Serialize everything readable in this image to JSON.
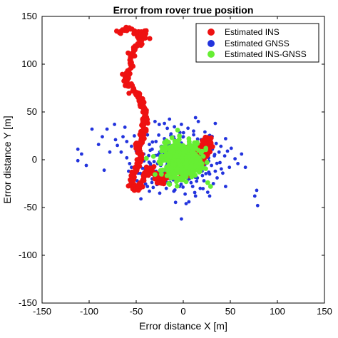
{
  "chart_data": {
    "type": "scatter",
    "title": "Error from rover true position",
    "xlabel": "Error distance X [m]",
    "ylabel": "Error distance Y [m]",
    "xlim": [
      -150,
      150
    ],
    "ylim": [
      -150,
      150
    ],
    "xticks": [
      -150,
      -100,
      -50,
      0,
      50,
      100,
      150
    ],
    "yticks": [
      -150,
      -100,
      -50,
      0,
      50,
      100,
      150
    ],
    "grid": false,
    "legend_position": "top-right",
    "series": [
      {
        "name": "Estimated INS",
        "color": "#ee1111",
        "trace": [
          [
            -68,
            134
          ],
          [
            -64,
            136
          ],
          [
            -58,
            137
          ],
          [
            -53,
            135
          ],
          [
            -47,
            132
          ],
          [
            -42,
            134
          ],
          [
            -40,
            130
          ],
          [
            -43,
            126
          ],
          [
            -47,
            121
          ],
          [
            -52,
            117
          ],
          [
            -56,
            112
          ],
          [
            -56,
            106
          ],
          [
            -55,
            100
          ],
          [
            -57,
            94
          ],
          [
            -60,
            89
          ],
          [
            -61,
            84
          ],
          [
            -59,
            79
          ],
          [
            -56,
            75
          ],
          [
            -52,
            72
          ],
          [
            -48,
            69
          ],
          [
            -47,
            65
          ],
          [
            -45,
            61
          ],
          [
            -43,
            57
          ],
          [
            -41,
            53
          ],
          [
            -40,
            49
          ],
          [
            -42,
            45
          ],
          [
            -41,
            41
          ],
          [
            -43,
            37
          ],
          [
            -42,
            33
          ],
          [
            -41,
            30
          ],
          [
            -44,
            27
          ],
          [
            -43,
            24
          ],
          [
            -44,
            20
          ],
          [
            -47,
            17
          ],
          [
            -49,
            13
          ],
          [
            -47,
            9
          ],
          [
            -45,
            5
          ],
          [
            -46,
            1
          ],
          [
            -48,
            -3
          ],
          [
            -49,
            -8
          ],
          [
            -51,
            -12
          ],
          [
            -53,
            -17
          ],
          [
            -55,
            -22
          ],
          [
            -54,
            -26
          ],
          [
            -52,
            -30
          ],
          [
            -49,
            -32
          ],
          [
            -46,
            -30
          ],
          [
            -44,
            -25
          ],
          [
            -42,
            -20
          ],
          [
            -40,
            -15
          ],
          [
            -37,
            -11
          ],
          [
            -34,
            -9
          ],
          [
            -31,
            -13
          ],
          [
            -28,
            -17
          ],
          [
            -26,
            -21
          ],
          [
            -24,
            -24
          ],
          [
            -21,
            -22
          ],
          [
            -18,
            -18
          ],
          [
            -15,
            -15
          ],
          [
            -12,
            -13
          ],
          [
            -9,
            -11
          ],
          [
            -6,
            -9
          ],
          [
            -3,
            -7
          ],
          [
            0,
            -5
          ],
          [
            3,
            -3
          ],
          [
            6,
            0
          ],
          [
            9,
            3
          ],
          [
            12,
            6
          ],
          [
            15,
            9
          ],
          [
            18,
            12
          ],
          [
            20,
            15
          ],
          [
            22,
            18
          ],
          [
            24,
            20
          ],
          [
            26,
            22
          ],
          [
            28,
            21
          ],
          [
            29,
            17
          ],
          [
            28,
            13
          ],
          [
            26,
            9
          ],
          [
            24,
            5
          ],
          [
            21,
            1
          ],
          [
            18,
            -3
          ],
          [
            15,
            -6
          ],
          [
            11,
            -9
          ],
          [
            7,
            -12
          ],
          [
            3,
            -14
          ],
          [
            -1,
            -15
          ],
          [
            -5,
            -14
          ],
          [
            -8,
            -10
          ],
          [
            -10,
            -6
          ],
          [
            -11,
            -2
          ],
          [
            -10,
            2
          ],
          [
            -8,
            6
          ],
          [
            -5,
            9
          ],
          [
            -2,
            11
          ],
          [
            1,
            12
          ],
          [
            4,
            11
          ],
          [
            7,
            9
          ],
          [
            9,
            6
          ],
          [
            10,
            2
          ],
          [
            9,
            -2
          ],
          [
            6,
            -5
          ],
          [
            2,
            -6
          ]
        ]
      },
      {
        "name": "Estimated GNSS",
        "color": "#2233dd",
        "points": [
          [
            -112,
            11
          ],
          [
            -108,
            6
          ],
          [
            -97,
            32
          ],
          [
            -90,
            16
          ],
          [
            -81,
            32
          ],
          [
            -78,
            8
          ],
          [
            -73,
            37
          ],
          [
            -72,
            21
          ],
          [
            -70,
            15
          ],
          [
            -66,
            8
          ],
          [
            -64,
            24
          ],
          [
            -62,
            34
          ],
          [
            -60,
            19
          ],
          [
            -60,
            2
          ],
          [
            -57,
            -4
          ],
          [
            -55,
            14
          ],
          [
            -55,
            -8
          ],
          [
            -52,
            25
          ],
          [
            -50,
            9
          ],
          [
            -49,
            -22
          ],
          [
            -48,
            -14
          ],
          [
            -46,
            3
          ],
          [
            -46,
            -27
          ],
          [
            -45,
            -41
          ],
          [
            -42,
            6
          ],
          [
            -41,
            -18
          ],
          [
            -40,
            -10
          ],
          [
            -39,
            2
          ],
          [
            -38,
            -28
          ],
          [
            -36,
            16
          ],
          [
            -36,
            -33
          ],
          [
            -35,
            -4
          ],
          [
            -33,
            -20
          ],
          [
            -33,
            11
          ],
          [
            -32,
            -29
          ],
          [
            -31,
            -2
          ],
          [
            -29,
            -12
          ],
          [
            -29,
            19
          ],
          [
            -28,
            -26
          ],
          [
            -27,
            5
          ],
          [
            -26,
            -16
          ],
          [
            -25,
            -35
          ],
          [
            -25,
            8
          ],
          [
            -24,
            -6
          ],
          [
            -23,
            14
          ],
          [
            -22,
            -22
          ],
          [
            -21,
            -12
          ],
          [
            -20,
            22
          ],
          [
            -19,
            2
          ],
          [
            -18,
            -30
          ],
          [
            -18,
            -17
          ],
          [
            -17,
            9
          ],
          [
            -16,
            -8
          ],
          [
            -15,
            17
          ],
          [
            -14,
            -24
          ],
          [
            -14,
            1
          ],
          [
            -13,
            27
          ],
          [
            -12,
            -14
          ],
          [
            -11,
            11
          ],
          [
            -10,
            -33
          ],
          [
            -10,
            -4
          ],
          [
            -9,
            21
          ],
          [
            -8,
            -20
          ],
          [
            -7,
            5
          ],
          [
            -6,
            31
          ],
          [
            -5,
            -12
          ],
          [
            -5,
            15
          ],
          [
            -4,
            -28
          ],
          [
            -3,
            2
          ],
          [
            -2,
            37
          ],
          [
            -1,
            -18
          ],
          [
            0,
            24
          ],
          [
            1,
            -7
          ],
          [
            2,
            -36
          ],
          [
            3,
            13
          ],
          [
            4,
            -22
          ],
          [
            5,
            33
          ],
          [
            5,
            -2
          ],
          [
            6,
            -44
          ],
          [
            7,
            18
          ],
          [
            8,
            -16
          ],
          [
            9,
            7
          ],
          [
            10,
            -28
          ],
          [
            11,
            30
          ],
          [
            12,
            -8
          ],
          [
            13,
            -38
          ],
          [
            14,
            11
          ],
          [
            15,
            -19
          ],
          [
            16,
            40
          ],
          [
            17,
            2
          ],
          [
            18,
            -30
          ],
          [
            19,
            21
          ],
          [
            20,
            -12
          ],
          [
            21,
            7
          ],
          [
            22,
            -22
          ],
          [
            23,
            29
          ],
          [
            24,
            -4
          ],
          [
            25,
            14
          ],
          [
            26,
            -34
          ],
          [
            27,
            2
          ],
          [
            28,
            -15
          ],
          [
            29,
            22
          ],
          [
            30,
            -6
          ],
          [
            31,
            11
          ],
          [
            32,
            -25
          ],
          [
            33,
            4
          ],
          [
            34,
            -12
          ],
          [
            35,
            17
          ],
          [
            36,
            -19
          ],
          [
            38,
            8
          ],
          [
            39,
            -3
          ],
          [
            40,
            14
          ],
          [
            42,
            -14
          ],
          [
            44,
            4
          ],
          [
            45,
            -28
          ],
          [
            47,
            9
          ],
          [
            49,
            -8
          ],
          [
            51,
            12
          ],
          [
            55,
            1
          ],
          [
            58,
            -4
          ],
          [
            62,
            6
          ],
          [
            66,
            -8
          ],
          [
            -112,
            -1
          ],
          [
            -103,
            -6
          ],
          [
            -86,
            24
          ],
          [
            -84,
            -11
          ],
          [
            78,
            -32
          ],
          [
            79,
            -48
          ],
          [
            -2,
            -62
          ],
          [
            76,
            -38
          ],
          [
            3,
            -46
          ],
          [
            28,
            -38
          ],
          [
            -30,
            40
          ],
          [
            -20,
            38
          ],
          [
            13,
            44
          ],
          [
            34,
            38
          ],
          [
            45,
            22
          ],
          [
            -44,
            16
          ],
          [
            -58,
            -12
          ],
          [
            -38,
            26
          ]
        ]
      },
      {
        "name": "Estimated INS-GNSS",
        "color": "#66ee33",
        "center": [
          -2,
          0
        ],
        "spread": [
          18,
          16
        ],
        "points": [
          [
            -20,
            18
          ],
          [
            -12,
            23
          ],
          [
            -4,
            25
          ],
          [
            6,
            22
          ],
          [
            15,
            17
          ],
          [
            19,
            7
          ],
          [
            20,
            -4
          ],
          [
            17,
            -13
          ],
          [
            9,
            -18
          ],
          [
            0,
            -21
          ],
          [
            -9,
            -18
          ],
          [
            -17,
            -11
          ],
          [
            -22,
            -1
          ],
          [
            -23,
            9
          ],
          [
            -14,
            4
          ],
          [
            -7,
            12
          ],
          [
            2,
            9
          ],
          [
            11,
            4
          ],
          [
            8,
            -7
          ],
          [
            -2,
            -9
          ],
          [
            -11,
            -5
          ],
          [
            26,
            -24
          ],
          [
            29,
            -28
          ],
          [
            -6,
            31
          ],
          [
            24,
            12
          ]
        ]
      }
    ]
  }
}
